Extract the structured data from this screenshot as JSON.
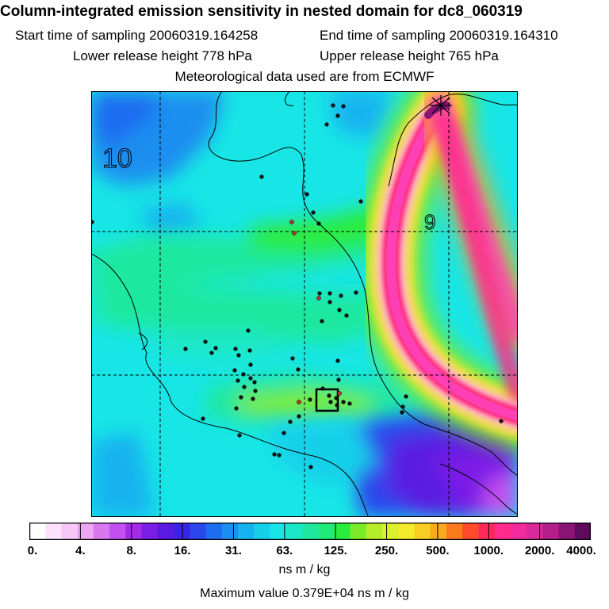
{
  "header": {
    "title": "Column-integrated emission sensitivity in nested domain for dc8_060319",
    "start_label": "Start time of sampling 20060319.164258",
    "end_label": "End time of sampling 20060319.164310",
    "lower_label": "Lower release height  778 hPa",
    "upper_label": "Upper release height  765 hPa",
    "met_label": "Meteorological data used are from ECMWF"
  },
  "map": {
    "labels": [
      "10",
      "9"
    ],
    "colors": {
      "background_cyan": "#18e6e6",
      "blue": "#1b8ef0",
      "green": "#2ef03c",
      "plume_yellow": "#f2e82a",
      "plume_red": "#ff2a78",
      "plume_magenta": "#ff3fb4",
      "purple": "#4a2ee6"
    }
  },
  "colorbar": {
    "colors": [
      "#ffffff",
      "#fde2fb",
      "#f7c8f7",
      "#eca6f2",
      "#d978ee",
      "#c24ff0",
      "#a52ae6",
      "#7a1ee6",
      "#5a1ae2",
      "#3a24e4",
      "#2a46ec",
      "#1e6cf0",
      "#1a90f2",
      "#16b2f0",
      "#16d0ea",
      "#18e6e6",
      "#1ae8c8",
      "#1ee8a0",
      "#22ea78",
      "#2aec3c",
      "#7aea2a",
      "#b4ee2a",
      "#daf02a",
      "#f2ea2a",
      "#f6ce24",
      "#f8aa1e",
      "#fa7a1e",
      "#fc4a2a",
      "#ff2a5a",
      "#ff2a8a",
      "#f22a9e",
      "#d82a9a",
      "#b41e8a",
      "#8a1476",
      "#5e0a5e"
    ],
    "tick_labels": [
      "0.",
      "4.",
      "8.",
      "16.",
      "31.",
      "63.",
      "125.",
      "250.",
      "500.",
      "1000.",
      "2000.",
      "4000."
    ],
    "units": "ns m / kg",
    "maximum": "Maximum value  0.379E+04 ns m / kg"
  }
}
